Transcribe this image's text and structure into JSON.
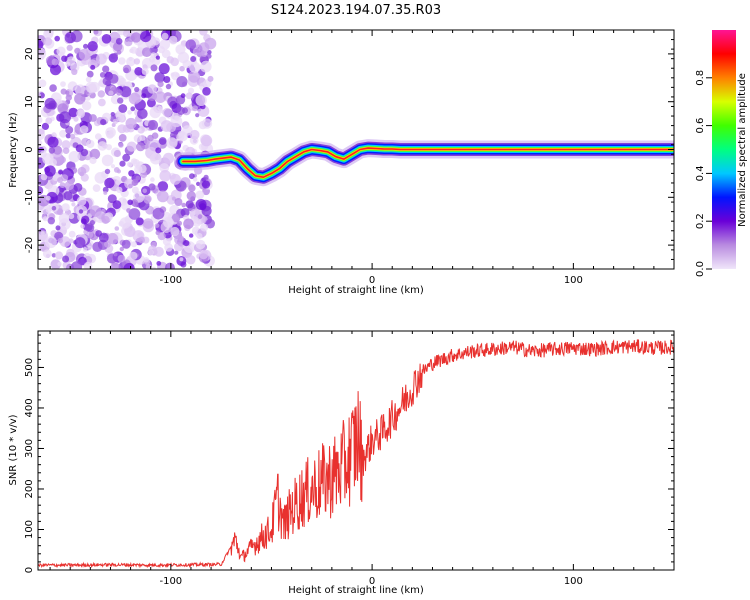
{
  "title": "S124.2023.194.07.35.R03",
  "chart_data": [
    {
      "type": "heatmap",
      "xlabel": "Height of straight line (km)",
      "ylabel": "Frequency (Hz)",
      "xlim": [
        -166,
        150
      ],
      "ylim": [
        -25,
        25
      ],
      "x_ticks": [
        -100,
        0,
        100
      ],
      "y_ticks": [
        -20,
        -10,
        0,
        10,
        20
      ],
      "x_tick_labels": [
        "-100",
        "0",
        "100"
      ],
      "y_tick_labels": [
        "-20",
        "-10",
        "0",
        "10",
        "20"
      ],
      "grid": false,
      "noise_region_x": [
        -166,
        -80
      ],
      "trace": {
        "x": [
          -94,
          -88,
          -82,
          -78,
          -74,
          -70,
          -66,
          -62,
          -58,
          -54,
          -50,
          -46,
          -42,
          -38,
          -34,
          -30,
          -26,
          -22,
          -18,
          -14,
          -10,
          -6,
          -2,
          2,
          6,
          10,
          14,
          150
        ],
        "y": [
          -2.5,
          -2.5,
          -2.3,
          -2.0,
          -1.8,
          -1.6,
          -2.2,
          -4.0,
          -5.5,
          -5.8,
          -5.0,
          -4.0,
          -2.5,
          -1.5,
          -0.5,
          0,
          -0.2,
          -0.5,
          -1.5,
          -2.0,
          -1.0,
          0,
          0.3,
          0.2,
          0.1,
          0.1,
          0,
          0
        ]
      },
      "colorbar": {
        "label": "Normalized spectral amplitude",
        "min": 0.0,
        "max": 1.0,
        "ticks": [
          0.0,
          0.2,
          0.4,
          0.6,
          0.8
        ],
        "tick_labels": [
          "0.0",
          "0.2",
          "0.4",
          "0.6",
          "0.8"
        ],
        "colors": [
          "#f0e6fa",
          "#b98be0",
          "#6a00d8",
          "#0014ff",
          "#00c8ff",
          "#00ff80",
          "#40ff00",
          "#d8ff00",
          "#ff8000",
          "#ff0000",
          "#ff1493"
        ]
      }
    },
    {
      "type": "line",
      "xlabel": "Height of straight line (km)",
      "ylabel": "SNR (10 * v/v)",
      "xlim": [
        -166,
        150
      ],
      "ylim": [
        0,
        590
      ],
      "x_ticks": [
        -100,
        0,
        100
      ],
      "y_ticks": [
        0,
        100,
        200,
        300,
        400,
        500
      ],
      "x_tick_labels": [
        "-100",
        "0",
        "100"
      ],
      "y_tick_labels": [
        "0",
        "100",
        "200",
        "300",
        "400",
        "500"
      ],
      "grid": false,
      "series": [
        {
          "color": "#e8312e",
          "x": [
            -166,
            -150,
            -130,
            -110,
            -90,
            -75,
            -68,
            -65,
            -60,
            -55,
            -50,
            -47,
            -44,
            -40,
            -35,
            -30,
            -25,
            -20,
            -15,
            -10,
            -7,
            -5,
            -2,
            0,
            5,
            10,
            15,
            20,
            25,
            30,
            40,
            50,
            60,
            70,
            80,
            90,
            100,
            110,
            120,
            130,
            140,
            150
          ],
          "y": [
            12,
            12,
            13,
            12,
            13,
            14,
            75,
            30,
            55,
            80,
            100,
            180,
            110,
            150,
            180,
            200,
            215,
            230,
            250,
            290,
            330,
            270,
            300,
            320,
            340,
            375,
            410,
            450,
            490,
            510,
            530,
            540,
            545,
            550,
            540,
            545,
            548,
            545,
            550,
            552,
            548,
            550
          ]
        }
      ]
    }
  ]
}
